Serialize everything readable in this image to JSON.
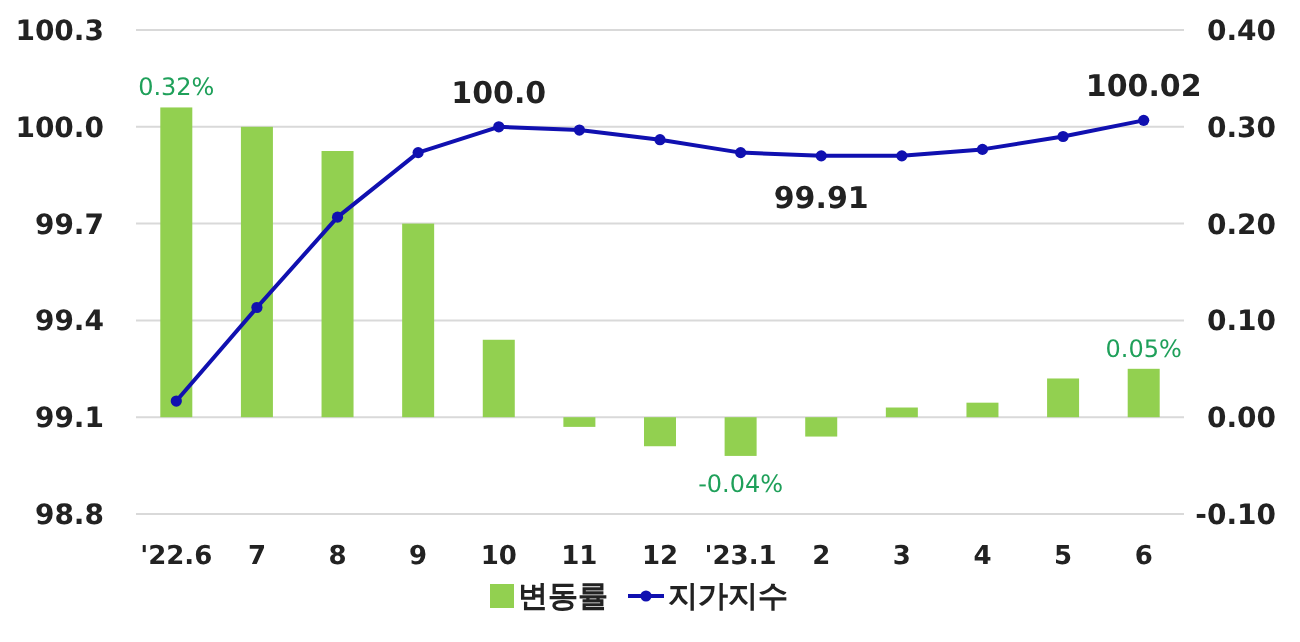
{
  "chart_data": {
    "type": "bar",
    "categories": [
      "'22.6",
      "7",
      "8",
      "9",
      "10",
      "11",
      "12",
      "'23.1",
      "2",
      "3",
      "4",
      "5",
      "6"
    ],
    "series": [
      {
        "name": "변동률",
        "axis": "y2",
        "color": "#92d050",
        "values": [
          0.32,
          0.3,
          0.275,
          0.2,
          0.08,
          -0.01,
          -0.03,
          -0.04,
          -0.02,
          0.01,
          0.015,
          0.04,
          0.05
        ],
        "value_labels": [
          "0.32%",
          null,
          null,
          null,
          null,
          null,
          null,
          "-0.04%",
          null,
          null,
          null,
          null,
          "0.05%"
        ]
      },
      {
        "name": "지가지수",
        "type": "line",
        "axis": "y",
        "color": "#1010b0",
        "marker": "circle",
        "values": [
          99.15,
          99.44,
          99.72,
          99.92,
          100.0,
          99.99,
          99.96,
          99.92,
          99.91,
          99.91,
          99.93,
          99.97,
          100.02
        ],
        "value_labels": [
          null,
          null,
          null,
          null,
          "100.0",
          null,
          null,
          null,
          "99.91",
          null,
          null,
          null,
          "100.02"
        ]
      }
    ],
    "ylim": [
      98.8,
      100.3
    ],
    "yticks": [
      {
        "value": 98.8,
        "label": "98.8"
      },
      {
        "value": 99.1,
        "label": "99.1"
      },
      {
        "value": 99.4,
        "label": "99.4"
      },
      {
        "value": 99.7,
        "label": "99.7"
      },
      {
        "value": 100.0,
        "label": "100.0"
      },
      {
        "value": 100.3,
        "label": "100.3"
      }
    ],
    "y2lim": [
      -0.1,
      0.4
    ],
    "y2ticks": [
      {
        "value": -0.1,
        "label": "-0.10"
      },
      {
        "value": 0,
        "label": "0.00"
      },
      {
        "value": 0.1,
        "label": "0.10"
      },
      {
        "value": 0.2,
        "label": "0.20"
      },
      {
        "value": 0.3,
        "label": "0.30"
      },
      {
        "value": 0.4,
        "label": "0.40"
      }
    ],
    "grid": "y",
    "legend": "bottom"
  }
}
